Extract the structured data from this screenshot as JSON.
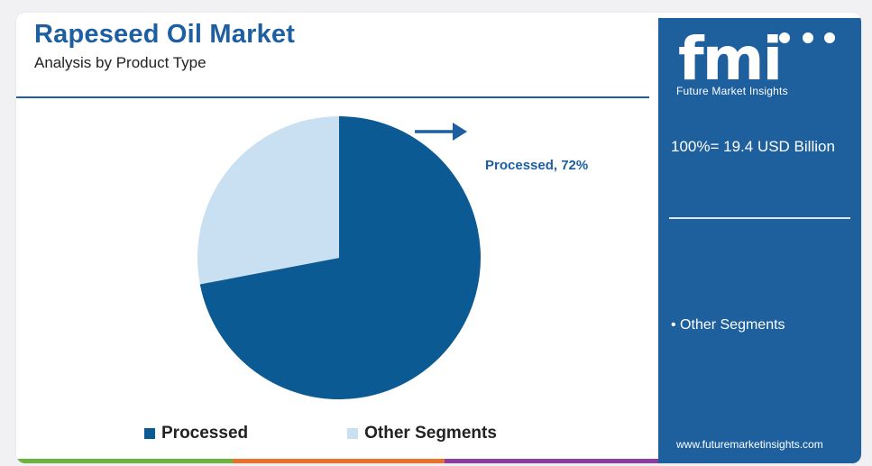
{
  "header": {
    "title": "Rapeseed Oil Market",
    "subtitle": "Analysis by Product Type"
  },
  "chart_data": {
    "type": "pie",
    "categories": [
      "Processed",
      "Other Segments"
    ],
    "values": [
      72,
      28
    ],
    "colors": [
      "#0c5a93",
      "#c8e0f2"
    ],
    "annotations": [
      "Processed, 72%"
    ],
    "legend_position": "bottom"
  },
  "sidebar": {
    "logo_text": "fmi",
    "logo_subtitle": "Future Market Insights",
    "total_label": "100%= 19.4 USD Billion",
    "items": [
      "• Other Segments"
    ],
    "website": "www.futuremarketinsights.com",
    "background": "#1e5f9e"
  },
  "colors": {
    "accent": "#1d5fa0",
    "bottom_bar": [
      "#6cb33f",
      "#e8702a",
      "#8a3fa0",
      "#1e5f9e"
    ]
  }
}
